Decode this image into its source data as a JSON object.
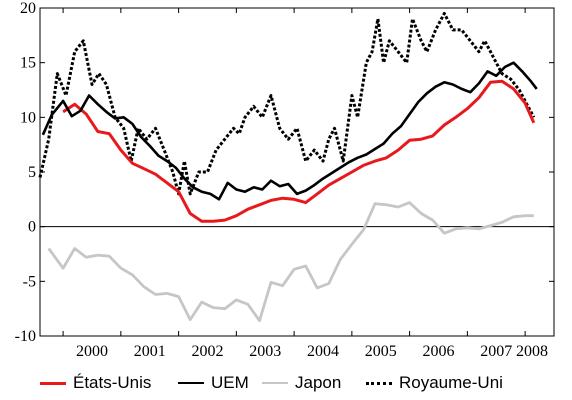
{
  "chart_data": {
    "type": "line",
    "x_label": "",
    "y_label": "",
    "ylim": [
      -10,
      20
    ],
    "yticks": [
      -10,
      -5,
      0,
      5,
      10,
      15,
      20
    ],
    "xlim": [
      1999.6,
      2008.5
    ],
    "year_labels": [
      "2000",
      "2001",
      "2002",
      "2003",
      "2004",
      "2005",
      "2006",
      "2007",
      "2008"
    ],
    "zero_line": true,
    "grid": false,
    "legend_position": "bottom",
    "series": [
      {
        "name": "États-Unis",
        "color": "#e8191d",
        "dash": "solid",
        "width": 3,
        "x": [
          2000.0,
          2000.2,
          2000.4,
          2000.6,
          2000.8,
          2001.0,
          2001.2,
          2001.4,
          2001.6,
          2001.8,
          2002.0,
          2002.2,
          2002.4,
          2002.6,
          2002.8,
          2003.0,
          2003.2,
          2003.4,
          2003.6,
          2003.8,
          2004.0,
          2004.2,
          2004.4,
          2004.6,
          2004.8,
          2005.0,
          2005.2,
          2005.4,
          2005.6,
          2005.8,
          2006.0,
          2006.2,
          2006.4,
          2006.6,
          2006.8,
          2007.0,
          2007.2,
          2007.4,
          2007.6,
          2007.8,
          2008.0,
          2008.15
        ],
        "y": [
          10.5,
          11.2,
          10.3,
          8.7,
          8.5,
          7.0,
          5.8,
          5.3,
          4.8,
          4.0,
          3.2,
          1.2,
          0.5,
          0.5,
          0.6,
          1.0,
          1.6,
          2.0,
          2.4,
          2.6,
          2.5,
          2.2,
          3.0,
          3.8,
          4.4,
          5.0,
          5.6,
          6.0,
          6.3,
          7.0,
          7.9,
          8.0,
          8.3,
          9.3,
          10.0,
          10.8,
          11.8,
          13.2,
          13.3,
          12.6,
          11.3,
          9.5
        ]
      },
      {
        "name": "UEM",
        "color": "#000000",
        "dash": "solid",
        "width": 2.6,
        "x": [
          1999.65,
          1999.8,
          2000.0,
          2000.15,
          2000.3,
          2000.45,
          2000.6,
          2000.75,
          2000.9,
          2001.05,
          2001.2,
          2001.35,
          2001.5,
          2001.65,
          2001.8,
          2001.95,
          2002.1,
          2002.25,
          2002.4,
          2002.55,
          2002.7,
          2002.85,
          2003.0,
          2003.15,
          2003.3,
          2003.45,
          2003.6,
          2003.75,
          2003.9,
          2004.05,
          2004.2,
          2004.35,
          2004.5,
          2004.65,
          2004.8,
          2004.95,
          2005.1,
          2005.25,
          2005.4,
          2005.55,
          2005.7,
          2005.85,
          2006.0,
          2006.15,
          2006.3,
          2006.45,
          2006.6,
          2006.75,
          2006.9,
          2007.05,
          2007.2,
          2007.35,
          2007.5,
          2007.65,
          2007.8,
          2007.95,
          2008.1,
          2008.2
        ],
        "y": [
          8.4,
          10.2,
          11.5,
          10.1,
          10.6,
          12.0,
          11.2,
          10.5,
          9.9,
          10.0,
          9.4,
          8.2,
          7.4,
          6.5,
          6.0,
          5.4,
          4.4,
          3.6,
          3.2,
          3.0,
          2.5,
          4.0,
          3.4,
          3.2,
          3.6,
          3.4,
          4.2,
          3.7,
          3.9,
          3.0,
          3.3,
          3.8,
          4.4,
          4.9,
          5.4,
          5.9,
          6.3,
          6.6,
          7.1,
          7.6,
          8.5,
          9.2,
          10.3,
          11.4,
          12.2,
          12.8,
          13.2,
          13.0,
          12.6,
          12.3,
          13.1,
          14.2,
          13.8,
          14.6,
          15.0,
          14.2,
          13.3,
          12.6
        ]
      },
      {
        "name": "Japon",
        "color": "#c6c6c6",
        "dash": "solid",
        "width": 2.8,
        "x": [
          1999.75,
          2000.0,
          2000.2,
          2000.4,
          2000.6,
          2000.8,
          2001.0,
          2001.2,
          2001.4,
          2001.6,
          2001.8,
          2002.0,
          2002.2,
          2002.4,
          2002.6,
          2002.8,
          2003.0,
          2003.2,
          2003.4,
          2003.6,
          2003.8,
          2004.0,
          2004.2,
          2004.4,
          2004.6,
          2004.8,
          2005.0,
          2005.2,
          2005.4,
          2005.6,
          2005.8,
          2006.0,
          2006.2,
          2006.4,
          2006.6,
          2006.8,
          2007.0,
          2007.2,
          2007.4,
          2007.6,
          2007.8,
          2008.0,
          2008.15
        ],
        "y": [
          -2.0,
          -3.8,
          -2.0,
          -2.8,
          -2.6,
          -2.7,
          -3.8,
          -4.4,
          -5.5,
          -6.2,
          -6.1,
          -6.4,
          -8.5,
          -6.9,
          -7.4,
          -7.5,
          -6.7,
          -7.1,
          -8.6,
          -5.1,
          -5.4,
          -3.9,
          -3.6,
          -5.6,
          -5.2,
          -3.0,
          -1.6,
          -0.3,
          2.1,
          2.0,
          1.8,
          2.2,
          1.2,
          0.6,
          -0.6,
          -0.2,
          -0.1,
          -0.2,
          0.1,
          0.4,
          0.9,
          1.0,
          1.0
        ]
      },
      {
        "name": "Royaume-Uni",
        "color": "#000000",
        "dash": "dotted",
        "width": 3,
        "x": [
          1999.6,
          1999.75,
          1999.9,
          2000.05,
          2000.2,
          2000.35,
          2000.5,
          2000.62,
          2000.75,
          2000.9,
          2001.05,
          2001.18,
          2001.3,
          2001.45,
          2001.6,
          2001.75,
          2001.9,
          2002.0,
          2002.1,
          2002.2,
          2002.35,
          2002.5,
          2002.65,
          2002.8,
          2002.95,
          2003.05,
          2003.15,
          2003.3,
          2003.45,
          2003.6,
          2003.75,
          2003.9,
          2004.05,
          2004.2,
          2004.35,
          2004.5,
          2004.6,
          2004.7,
          2004.85,
          2005.0,
          2005.1,
          2005.25,
          2005.35,
          2005.45,
          2005.55,
          2005.65,
          2005.8,
          2005.95,
          2006.05,
          2006.2,
          2006.3,
          2006.45,
          2006.6,
          2006.75,
          2006.9,
          2007.05,
          2007.2,
          2007.3,
          2007.4,
          2007.5,
          2007.6,
          2007.75,
          2007.9,
          2008.05,
          2008.15
        ],
        "y": [
          4.5,
          8.0,
          14.0,
          12.0,
          16.0,
          17.0,
          13.0,
          14.0,
          13.0,
          10.0,
          9.0,
          6.0,
          9.0,
          8.0,
          9.0,
          7.0,
          5.0,
          3.0,
          6.0,
          3.0,
          5.0,
          5.0,
          7.0,
          8.0,
          9.0,
          8.5,
          10.0,
          11.0,
          10.0,
          12.0,
          9.0,
          8.0,
          9.0,
          6.0,
          7.0,
          6.0,
          8.0,
          9.0,
          6.0,
          12.0,
          10.0,
          15.0,
          16.0,
          19.0,
          15.0,
          17.0,
          16.0,
          15.0,
          19.0,
          17.0,
          16.0,
          18.0,
          19.5,
          18.0,
          18.0,
          17.0,
          16.0,
          17.0,
          16.0,
          15.0,
          14.0,
          13.5,
          12.5,
          11.0,
          10.0
        ]
      }
    ]
  }
}
